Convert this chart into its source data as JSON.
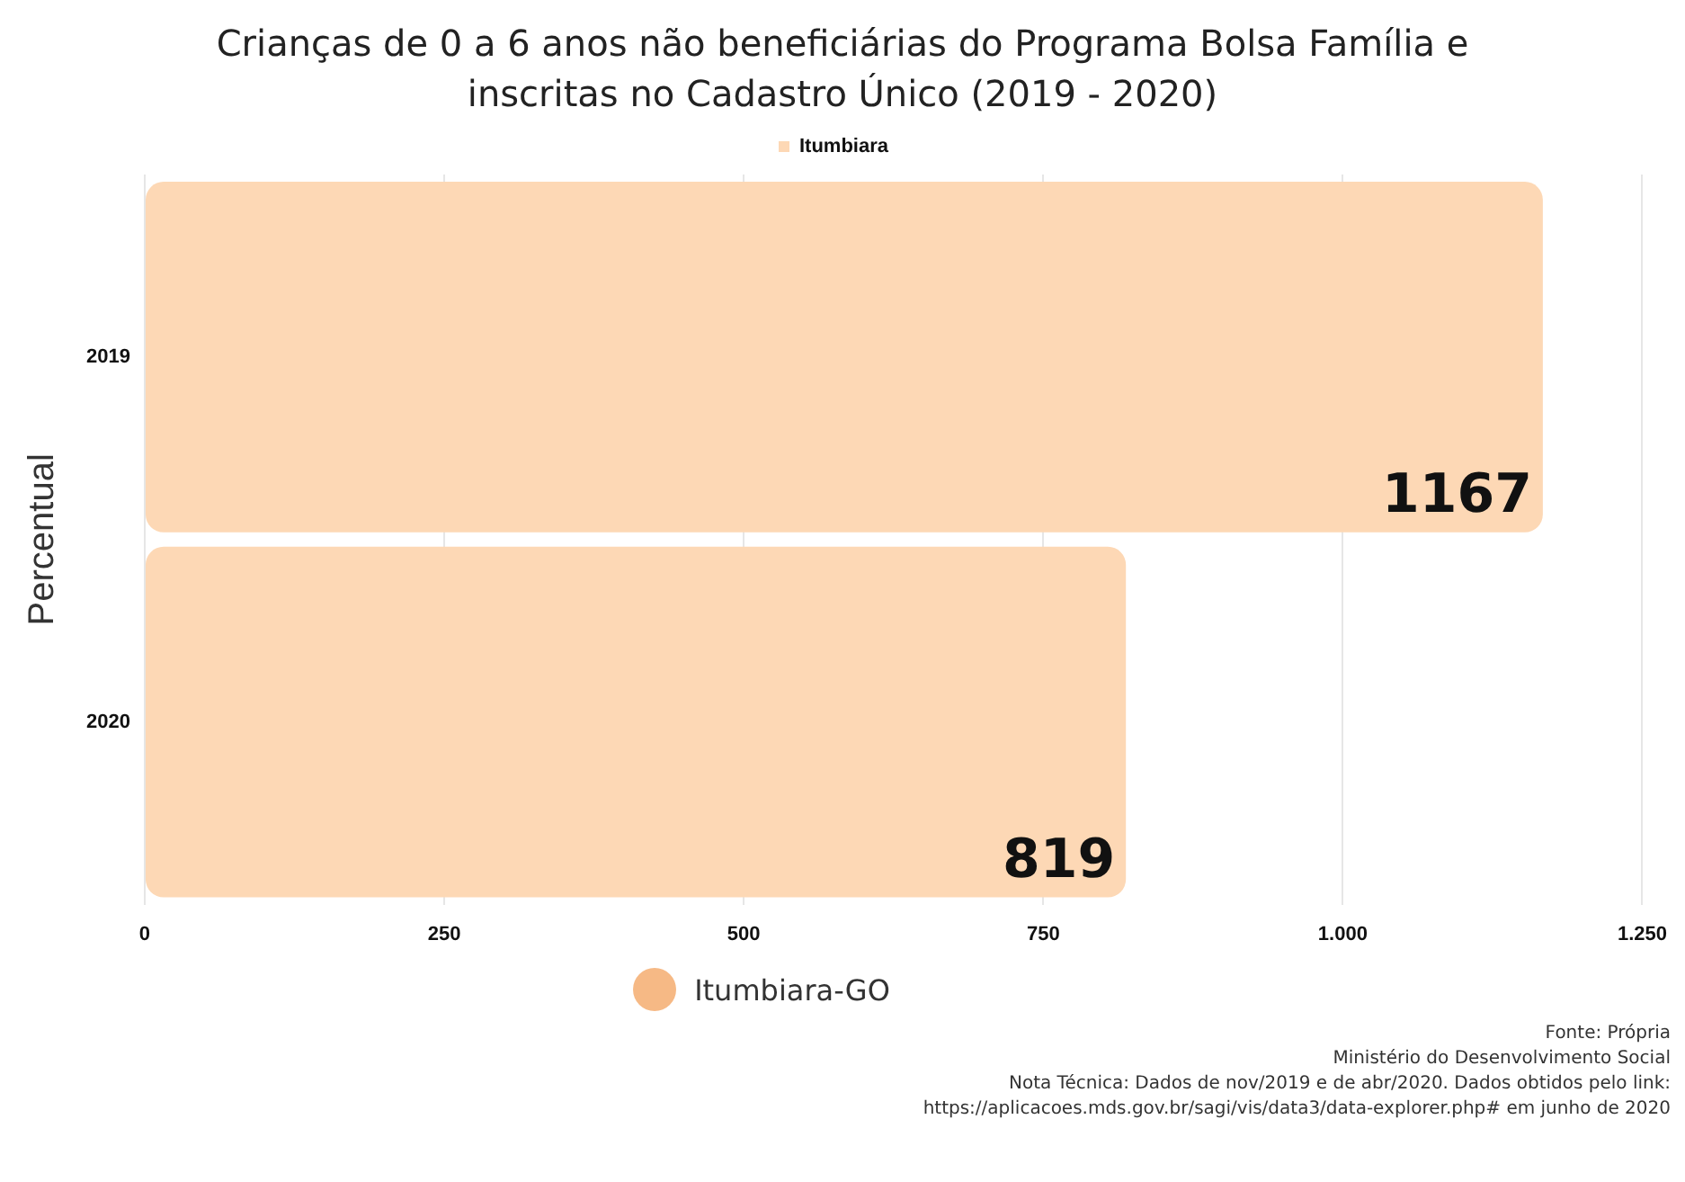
{
  "chart_data": {
    "type": "bar",
    "orientation": "horizontal",
    "title": "Crianças de 0 a 6 anos não beneficiárias do Programa Bolsa Família e inscritas no Cadastro Único (2019 - 2020)",
    "ylabel": "Percentual",
    "categories": [
      "2019",
      "2020"
    ],
    "series": [
      {
        "name": "Itumbiara",
        "color": "#fdd8b5",
        "values": [
          1167,
          819
        ]
      }
    ],
    "xlim": [
      0,
      1250
    ],
    "xticks": [
      0,
      250,
      500,
      750,
      {
        "value": 1000,
        "label": "1.000"
      },
      {
        "value": 1250,
        "label": "1.250"
      }
    ],
    "grid": "x",
    "legend": "top",
    "data_labels": true,
    "annotations": [
      "Itumbiara-GO",
      "Fonte: Própria",
      "Ministério do Desenvolvimento Social",
      "Nota Técnica: Dados de nov/2019 e de abr/2020. Dados obtidos pelo link: https://aplicacoes.mds.gov.br/sagi/vis/data3/data-explorer.php# em junho de 2020"
    ]
  }
}
